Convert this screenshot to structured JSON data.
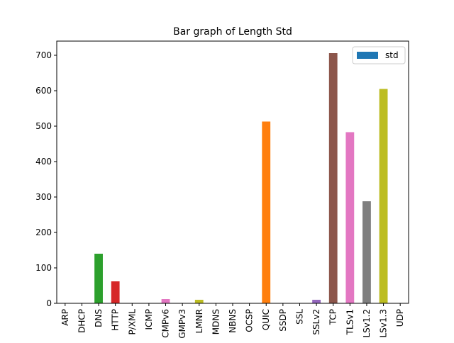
{
  "chart_data": {
    "type": "bar",
    "title": "Bar graph of Length Std",
    "xlabel": "",
    "ylabel": "",
    "ylim": [
      0,
      740
    ],
    "yticks": [
      0,
      100,
      200,
      300,
      400,
      500,
      600,
      700
    ],
    "grid": false,
    "legend": {
      "entries": [
        "std"
      ],
      "placement": "top-right"
    },
    "categories": [
      "ARP",
      "DHCP",
      "DNS",
      "HTTP",
      "P/XML",
      "ICMP",
      "CMPv6",
      "GMPv3",
      "LMNR",
      "MDNS",
      "NBNS",
      "OCSP",
      "QUIC",
      "SSDP",
      "SSL",
      "SSLv2",
      "TCP",
      "TLSv1",
      "LSv1.2",
      "LSv1.3",
      "UDP"
    ],
    "values": [
      0,
      0,
      140,
      62,
      0,
      0,
      12,
      0,
      10,
      0,
      0,
      0,
      513,
      0,
      0,
      10,
      706,
      483,
      288,
      605,
      0
    ],
    "colors": [
      "#1f77b4",
      "#ff7f0e",
      "#2ca02c",
      "#d62728",
      "#9467bd",
      "#8c564b",
      "#e377c2",
      "#7f7f7f",
      "#bcbd22",
      "#17becf",
      "#1f77b4",
      "#ff7f0e",
      "#ff7f0e",
      "#2ca02c",
      "#d62728",
      "#9467bd",
      "#8c564b",
      "#e377c2",
      "#7f7f7f",
      "#bcbd22",
      "#17becf"
    ],
    "legend_color": "#1f77b4"
  }
}
